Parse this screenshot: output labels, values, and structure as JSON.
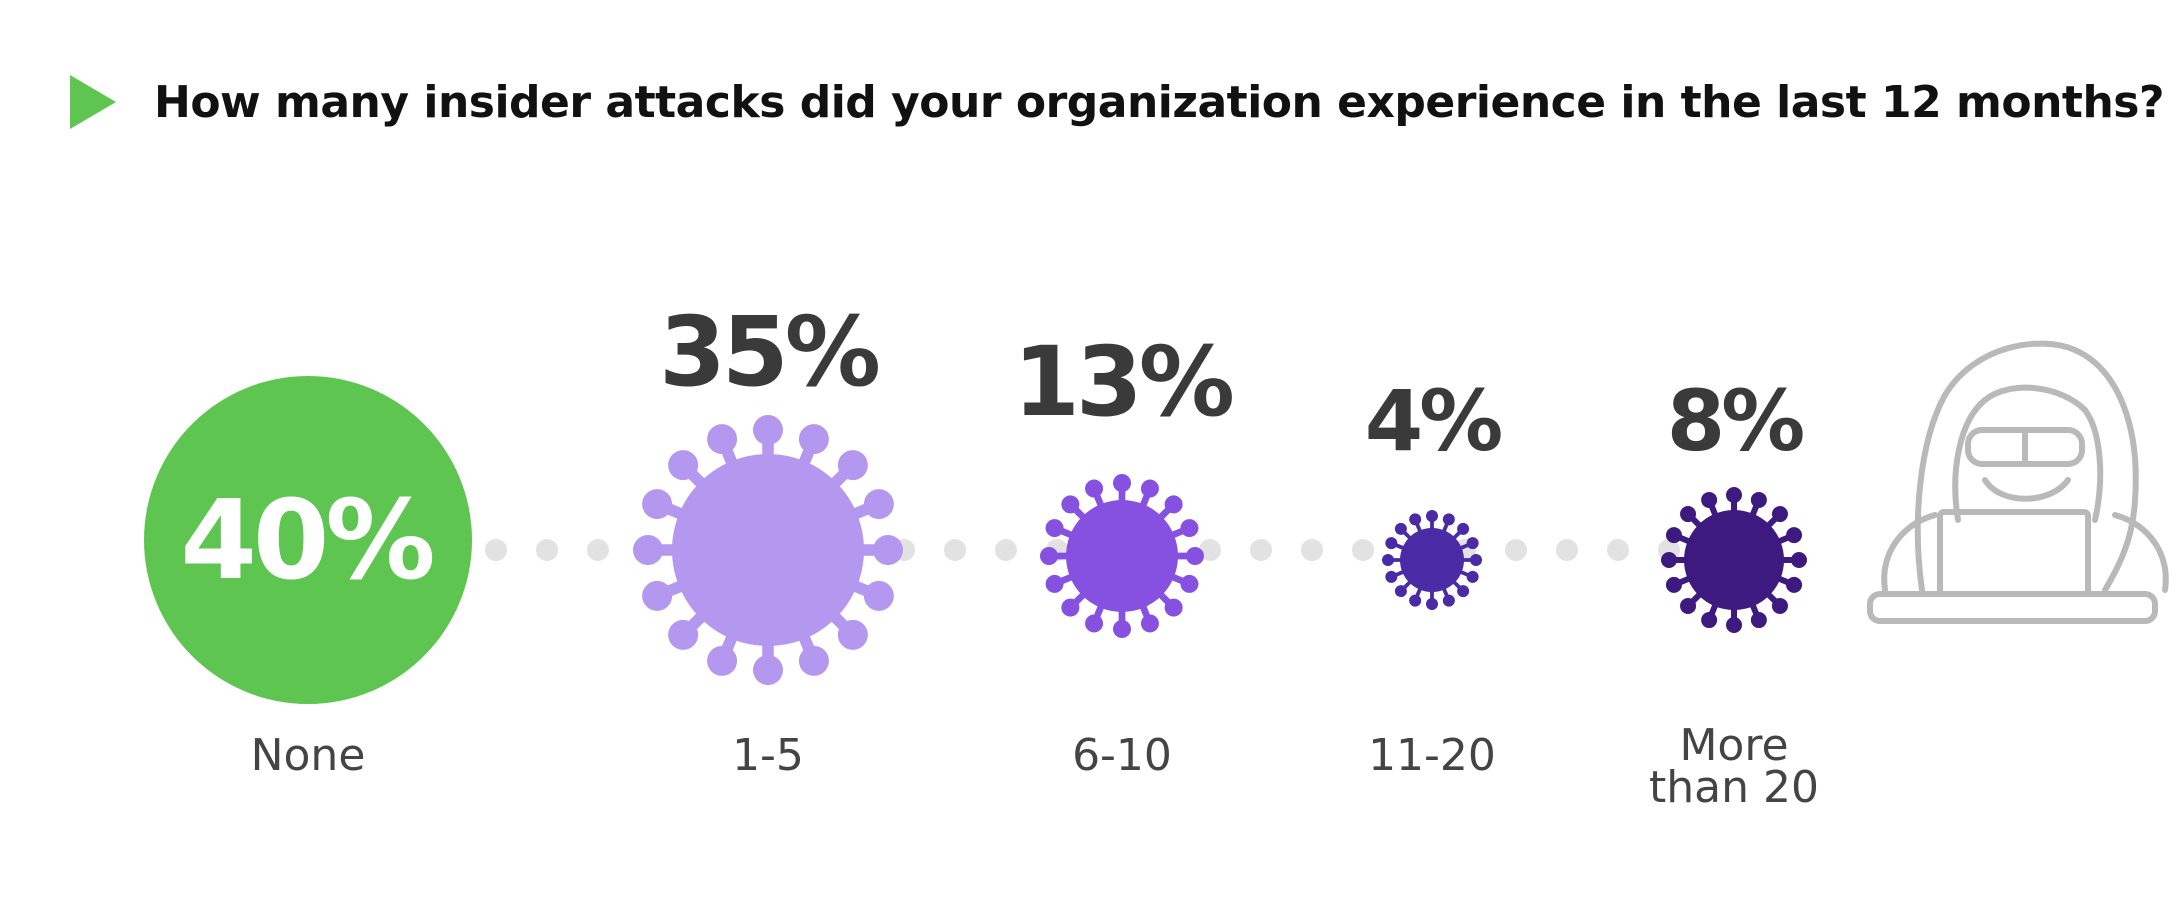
{
  "title": "How many insider attacks did your organization experience in the last 12 months?",
  "colors": {
    "title_marker": "#5ec650",
    "none_circle": "#5ec650",
    "range_1_5": "#b497ee",
    "range_6_10": "#8651e0",
    "range_11_20": "#4a2aa5",
    "range_more_20": "#3c1a80",
    "connector_dots": "#e2e2e2",
    "hacker_outline": "#b9b9b9"
  },
  "icons": {
    "title_marker": "play-triangle-icon",
    "virus": "virus-icon",
    "hacker": "hooded-hacker-icon"
  },
  "chart_data": {
    "type": "bubble",
    "title": "How many insider attacks did your organization experience in the last 12 months?",
    "categories": [
      "None",
      "1-5",
      "6-10",
      "11-20",
      "More than 20"
    ],
    "category_lines": [
      [
        "None"
      ],
      [
        "1-5"
      ],
      [
        "6-10"
      ],
      [
        "11-20"
      ],
      [
        "More",
        "than 20"
      ]
    ],
    "values": [
      40,
      35,
      13,
      4,
      8
    ],
    "value_labels": [
      "40%",
      "35%",
      "13%",
      "4%",
      "8%"
    ],
    "unit": "%"
  }
}
